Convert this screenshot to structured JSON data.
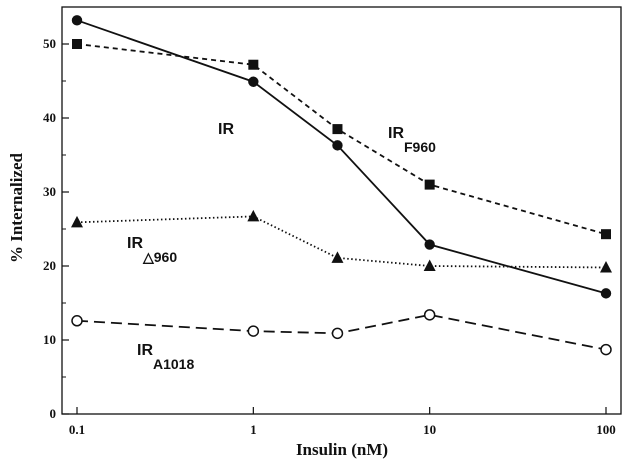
{
  "chart_data": {
    "type": "line",
    "xlabel": "Insulin (nM)",
    "ylabel": "% Internalized",
    "x_scale": "log",
    "x": [
      0.1,
      1,
      3,
      10,
      100
    ],
    "x_ticks": [
      0.1,
      1,
      10,
      100
    ],
    "x_tick_labels": [
      "0.1",
      "1",
      "10",
      "100"
    ],
    "xlim": [
      0.1,
      100
    ],
    "ylim": [
      0,
      55
    ],
    "y_ticks": [
      0,
      10,
      20,
      30,
      40,
      50
    ],
    "y_tick_labels": [
      "0",
      "10",
      "20",
      "30",
      "40",
      "50"
    ],
    "grid": false,
    "series": [
      {
        "name": "IR",
        "label_main": "IR",
        "label_sub": "",
        "marker": "filled-circle",
        "line": "solid",
        "values": [
          53.2,
          44.9,
          36.3,
          22.9,
          16.3
        ]
      },
      {
        "name": "IRF960",
        "label_main": "IR",
        "label_sub": "F960",
        "marker": "filled-square",
        "line": "dashed",
        "values": [
          50.0,
          47.2,
          38.5,
          31.0,
          24.3
        ]
      },
      {
        "name": "IR△960",
        "label_main": "IR",
        "label_sub": "△960",
        "marker": "filled-triangle",
        "line": "dotted",
        "values": [
          25.9,
          26.7,
          21.1,
          20.0,
          19.8
        ]
      },
      {
        "name": "IRA1018",
        "label_main": "IR",
        "label_sub": "A1018",
        "marker": "open-circle",
        "line": "long-dashed",
        "values": [
          12.6,
          11.2,
          10.9,
          13.4,
          8.7
        ]
      }
    ]
  }
}
